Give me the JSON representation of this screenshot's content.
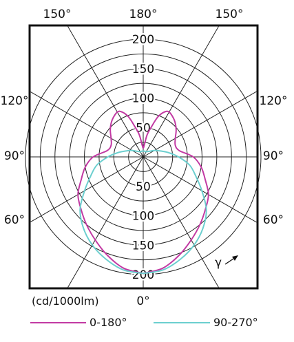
{
  "chart_data": {
    "type": "polar",
    "unit_label": "(cd/1000lm)",
    "radial_ticks": [
      "50",
      "100",
      "150",
      "200"
    ],
    "radial_values": [
      50,
      100,
      150,
      200
    ],
    "rmax": 200,
    "angle_labels": {
      "top": [
        "150°",
        "180°",
        "150°"
      ],
      "left": [
        "120°",
        "90°",
        "60°"
      ],
      "right": [
        "120°",
        "90°",
        "60°"
      ],
      "bottom": "0°"
    },
    "gamma_label": "γ",
    "series": [
      {
        "name": "0-180°",
        "color": "#c23aa3",
        "gamma": [
          0,
          10,
          20,
          30,
          40,
          50,
          60,
          70,
          80,
          90,
          100,
          110,
          120,
          130,
          140,
          150,
          155,
          160,
          165,
          170,
          175,
          180
        ],
        "intensity": [
          198,
          192,
          178,
          163,
          150,
          138,
          128,
          112,
          100,
          85,
          62,
          58,
          63,
          73,
          82,
          88,
          84,
          72,
          52,
          38,
          20,
          15
        ]
      },
      {
        "name": "90-270°",
        "color": "#6ccfcf",
        "gamma": [
          0,
          10,
          20,
          30,
          40,
          50,
          60,
          70,
          80,
          90,
          100,
          110,
          120,
          130,
          140,
          150,
          160,
          170,
          180
        ],
        "intensity": [
          198,
          195,
          185,
          173,
          158,
          140,
          115,
          95,
          80,
          60,
          43,
          30,
          22,
          15,
          12,
          10,
          10,
          10,
          10
        ]
      }
    ]
  }
}
